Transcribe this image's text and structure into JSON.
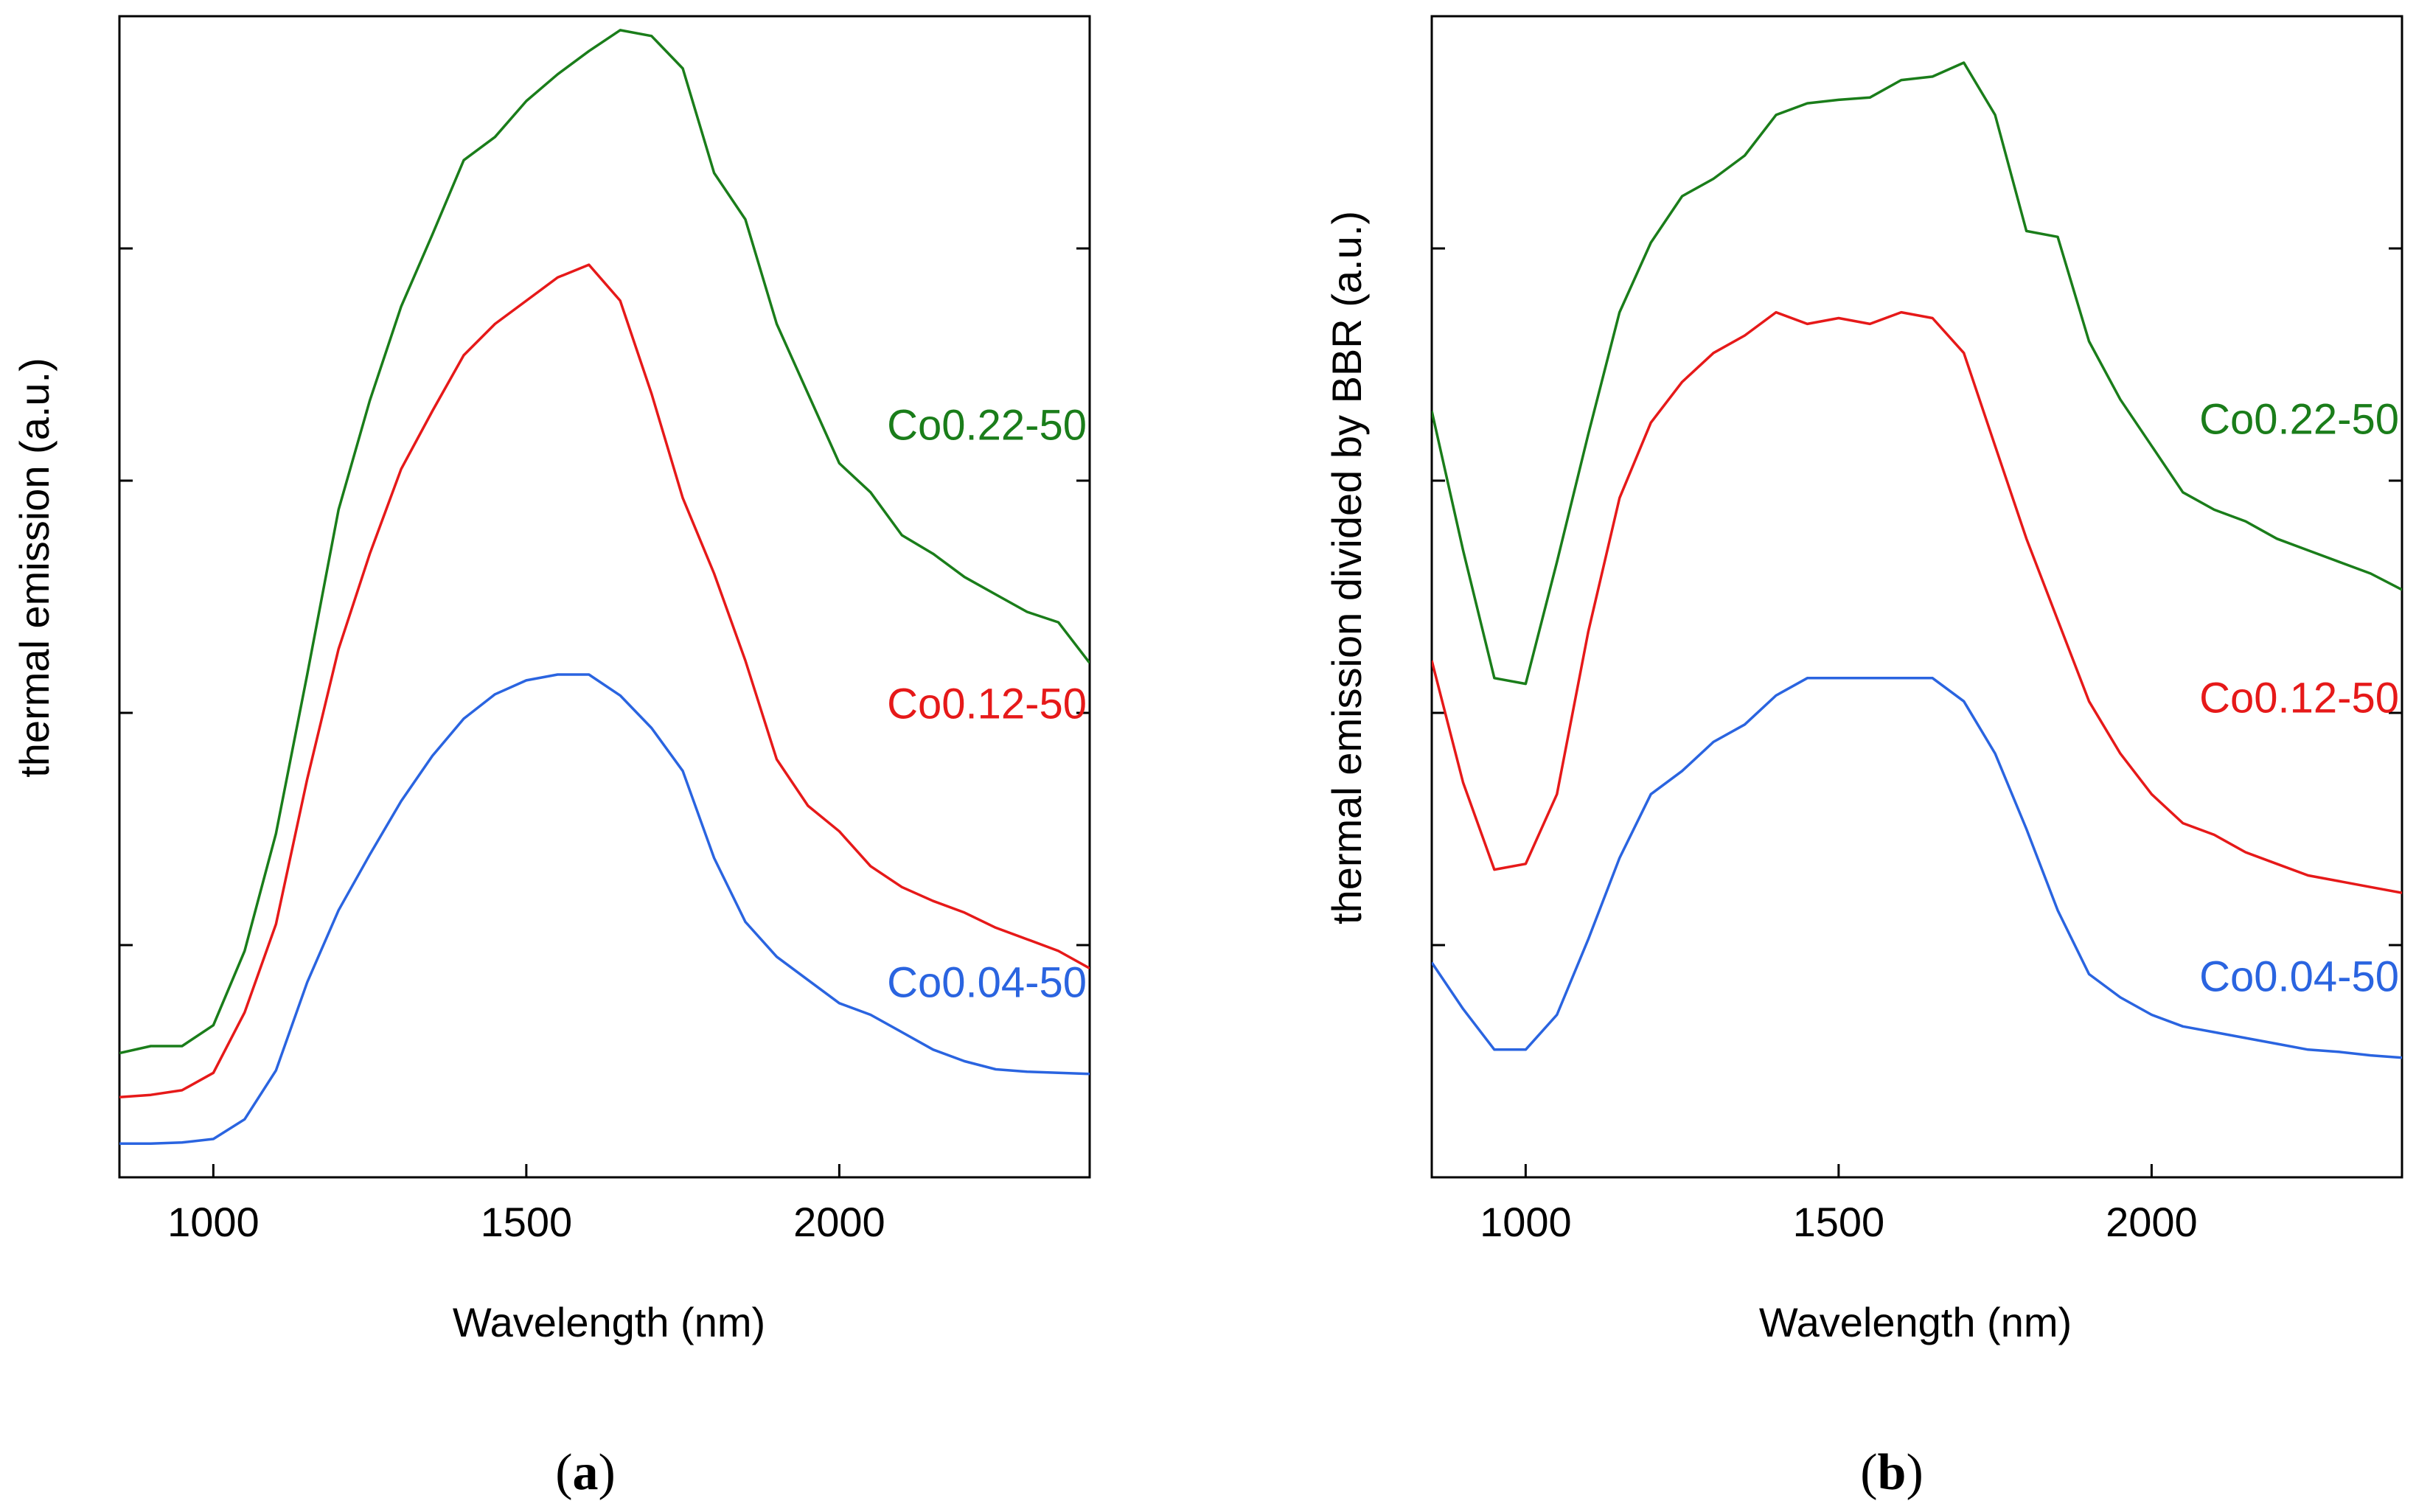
{
  "figure": {
    "panels": [
      "(a)",
      "(b)"
    ]
  },
  "chart_data": [
    {
      "type": "line",
      "panel_label_prefix": "(",
      "panel_label_letter": "a",
      "panel_label_suffix": ")",
      "title": "",
      "xlabel": "Wavelength (nm)",
      "ylabel": "thermal emission (a.u.)",
      "xlim": [
        850,
        2400
      ],
      "ylim": [
        0,
        100
      ],
      "x_ticks": [
        1000,
        1500,
        2000
      ],
      "x_tick_labels": [
        "1000",
        "1500",
        "2000"
      ],
      "y_ticks": [
        20,
        40,
        60,
        80
      ],
      "y_tick_labels_shown": false,
      "grid": false,
      "series": [
        {
          "name": "Co0.22-50",
          "color": "#1a7d1a",
          "label_anchor": [
            2200,
            64.5
          ],
          "x": [
            850,
            900,
            950,
            1000,
            1050,
            1100,
            1150,
            1200,
            1250,
            1300,
            1350,
            1400,
            1450,
            1500,
            1550,
            1600,
            1650,
            1700,
            1750,
            1800,
            1850,
            1900,
            1950,
            2000,
            2050,
            2100,
            2150,
            2200,
            2250,
            2300,
            2350,
            2400
          ],
          "y": [
            10.7,
            11.3,
            11.3,
            13.1,
            19.5,
            29.6,
            43.3,
            57.5,
            66.9,
            75.0,
            81.2,
            87.6,
            89.6,
            92.7,
            95.0,
            97.0,
            98.8,
            98.3,
            95.5,
            86.5,
            82.5,
            73.5,
            67.5,
            61.5,
            59.0,
            55.3,
            53.7,
            51.7,
            50.2,
            48.7,
            47.8,
            44.3
          ]
        },
        {
          "name": "Co0.12-50",
          "color": "#e61919",
          "label_anchor": [
            2200,
            40.5
          ],
          "x": [
            850,
            900,
            950,
            1000,
            1050,
            1100,
            1150,
            1200,
            1250,
            1300,
            1350,
            1400,
            1450,
            1500,
            1550,
            1600,
            1650,
            1700,
            1750,
            1800,
            1850,
            1900,
            1950,
            2000,
            2050,
            2100,
            2150,
            2200,
            2250,
            2300,
            2350,
            2400
          ],
          "y": [
            6.9,
            7.1,
            7.5,
            9.0,
            14.2,
            21.8,
            34.3,
            45.5,
            53.7,
            61.0,
            66.0,
            70.8,
            73.5,
            75.5,
            77.5,
            78.6,
            75.5,
            67.5,
            58.5,
            52.0,
            44.5,
            36.0,
            32.0,
            29.8,
            26.8,
            25.0,
            23.8,
            22.8,
            21.5,
            20.5,
            19.5,
            18.0
          ]
        },
        {
          "name": "Co0.04-50",
          "color": "#2a64e0",
          "label_anchor": [
            2200,
            16.5
          ],
          "x": [
            850,
            900,
            950,
            1000,
            1050,
            1100,
            1150,
            1200,
            1250,
            1300,
            1350,
            1400,
            1450,
            1500,
            1550,
            1600,
            1650,
            1700,
            1750,
            1800,
            1850,
            1900,
            1950,
            2000,
            2050,
            2100,
            2150,
            2200,
            2250,
            2300,
            2350,
            2400
          ],
          "y": [
            2.9,
            2.9,
            3.0,
            3.3,
            5.0,
            9.2,
            16.8,
            23.0,
            27.8,
            32.4,
            36.3,
            39.5,
            41.6,
            42.8,
            43.3,
            43.3,
            41.5,
            38.7,
            35.0,
            27.5,
            22.0,
            19.0,
            17.0,
            15.0,
            14.0,
            12.5,
            11.0,
            10.0,
            9.3,
            9.1,
            9.0,
            8.9
          ]
        }
      ]
    },
    {
      "type": "line",
      "panel_label_prefix": "(",
      "panel_label_letter": "b",
      "panel_label_suffix": ")",
      "title": "",
      "xlabel": "Wavelength (nm)",
      "ylabel": "thermal emission divided by BBR (a.u.)",
      "xlim": [
        850,
        2400
      ],
      "ylim": [
        0,
        100
      ],
      "x_ticks": [
        1000,
        1500,
        2000
      ],
      "x_tick_labels": [
        "1000",
        "1500",
        "2000"
      ],
      "y_ticks": [
        20,
        40,
        60,
        80
      ],
      "y_tick_labels_shown": false,
      "grid": false,
      "series": [
        {
          "name": "Co0.22-50",
          "color": "#1a7d1a",
          "label_anchor": [
            2200,
            65.0
          ],
          "x": [
            850,
            900,
            950,
            1000,
            1050,
            1100,
            1150,
            1200,
            1250,
            1300,
            1350,
            1400,
            1450,
            1500,
            1550,
            1600,
            1650,
            1700,
            1750,
            1800,
            1850,
            1900,
            1950,
            2000,
            2050,
            2100,
            2150,
            2200,
            2250,
            2300,
            2350,
            2400
          ],
          "y": [
            66.0,
            54.0,
            43.0,
            42.5,
            53.0,
            64.0,
            74.5,
            80.5,
            84.5,
            86.0,
            88.0,
            91.5,
            92.5,
            92.8,
            93.0,
            94.5,
            94.8,
            96.0,
            91.5,
            81.5,
            81.0,
            72.0,
            67.0,
            63.0,
            59.0,
            57.5,
            56.5,
            55.0,
            54.0,
            53.0,
            52.0,
            50.6
          ]
        },
        {
          "name": "Co0.12-50",
          "color": "#e61919",
          "label_anchor": [
            2200,
            41.0
          ],
          "x": [
            850,
            900,
            950,
            1000,
            1050,
            1100,
            1150,
            1200,
            1250,
            1300,
            1350,
            1400,
            1450,
            1500,
            1550,
            1600,
            1650,
            1700,
            1750,
            1800,
            1850,
            1900,
            1950,
            2000,
            2050,
            2100,
            2150,
            2200,
            2250,
            2300,
            2350,
            2400
          ],
          "y": [
            44.5,
            34.0,
            26.5,
            27.0,
            33.0,
            47.0,
            58.5,
            65.0,
            68.5,
            71.0,
            72.5,
            74.5,
            73.5,
            74.0,
            73.5,
            74.5,
            74.0,
            71.0,
            63.0,
            55.0,
            48.0,
            41.0,
            36.5,
            33.0,
            30.5,
            29.5,
            28.0,
            27.0,
            26.0,
            25.5,
            25.0,
            24.5
          ]
        },
        {
          "name": "Co0.04-50",
          "color": "#2a64e0",
          "label_anchor": [
            2200,
            17.0
          ],
          "x": [
            850,
            900,
            950,
            1000,
            1050,
            1100,
            1150,
            1200,
            1250,
            1300,
            1350,
            1400,
            1450,
            1500,
            1550,
            1600,
            1650,
            1700,
            1750,
            1800,
            1850,
            1900,
            1950,
            2000,
            2050,
            2100,
            2150,
            2200,
            2250,
            2300,
            2350,
            2400
          ],
          "y": [
            18.5,
            14.5,
            11.0,
            11.0,
            14.0,
            20.5,
            27.5,
            33.0,
            35.0,
            37.5,
            39.0,
            41.5,
            43.0,
            43.0,
            43.0,
            43.0,
            43.0,
            41.0,
            36.5,
            30.0,
            23.0,
            17.5,
            15.5,
            14.0,
            13.0,
            12.5,
            12.0,
            11.5,
            11.0,
            10.8,
            10.5,
            10.3
          ]
        }
      ]
    }
  ]
}
